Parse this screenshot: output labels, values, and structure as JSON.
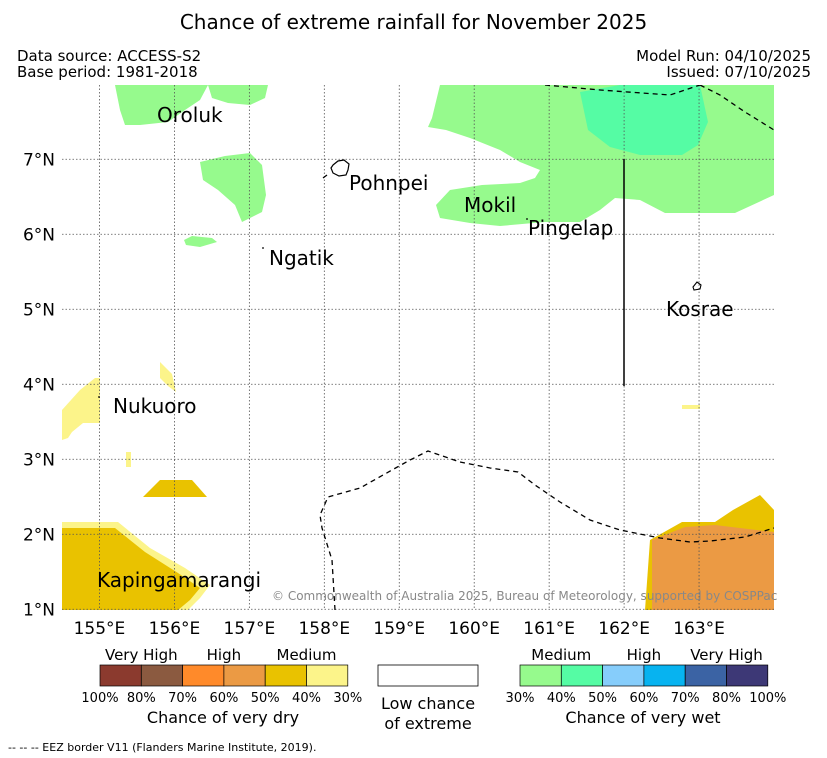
{
  "title": "Chance of extreme rainfall for November 2025",
  "meta": {
    "data_source": "Data source: ACCESS-S2",
    "base_period": "Base period: 1981-2018",
    "model_run": "Model Run: 04/10/2025",
    "issued": "Issued: 07/10/2025"
  },
  "map": {
    "lon_range": [
      154.5,
      164.0
    ],
    "lat_range": [
      0.99,
      7.99
    ],
    "lon_ticks": [
      155,
      156,
      157,
      158,
      159,
      160,
      161,
      162,
      163
    ],
    "lon_labels": [
      "155°E",
      "156°E",
      "157°E",
      "158°E",
      "159°E",
      "160°E",
      "161°E",
      "162°E",
      "163°E"
    ],
    "lat_ticks": [
      1,
      2,
      3,
      4,
      5,
      6,
      7
    ],
    "lat_labels": [
      "1°N",
      "2°N",
      "3°N",
      "4°N",
      "5°N",
      "6°N",
      "7°N"
    ],
    "places": [
      {
        "name": "Oroluk"
      },
      {
        "name": "Pohnpei"
      },
      {
        "name": "Mokil"
      },
      {
        "name": "Pingelap"
      },
      {
        "name": "Ngatik"
      },
      {
        "name": "Kosrae"
      },
      {
        "name": "Nukuoro"
      },
      {
        "name": "Kapingamarangi"
      }
    ],
    "copyright": "© Commonwealth of Australia 2025, Bureau of Meteorology, supported by COSPPac"
  },
  "legend": {
    "dry": {
      "groups": [
        "Very High",
        "High",
        "Medium"
      ],
      "colors": [
        "#8b3a2e",
        "#8b5a40",
        "#ff8a2a",
        "#eb9a44",
        "#e9c200",
        "#fcf48a"
      ],
      "ticks": [
        "100%",
        "80%",
        "70%",
        "60%",
        "50%",
        "40%",
        "30%"
      ],
      "caption": "Chance of very dry"
    },
    "low": {
      "line1": "Low chance",
      "line2": "of extreme"
    },
    "wet": {
      "groups": [
        "Medium",
        "High",
        "Very High"
      ],
      "colors": [
        "#96fa8d",
        "#55fca4",
        "#86cdfb",
        "#07b3f0",
        "#3b63a4",
        "#3d3876"
      ],
      "ticks": [
        "30%",
        "40%",
        "50%",
        "60%",
        "70%",
        "80%",
        "100%"
      ],
      "caption": "Chance of very wet"
    }
  },
  "footnote": "--  --  -- EEZ border V11 (Flanders Marine Institute, 2019).",
  "colors": {
    "wet_medium": "#96fa8d",
    "wet_medium_high": "#55fca4",
    "dry_medium": "#e9c200",
    "dry_light": "#fcf48a",
    "dry_orange": "#eb9a44"
  }
}
